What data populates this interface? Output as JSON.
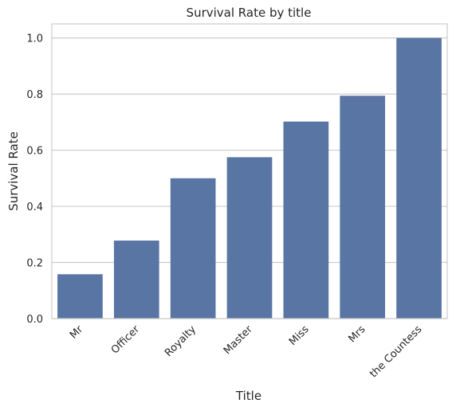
{
  "chart_data": {
    "type": "bar",
    "title": "Survival Rate by title",
    "xlabel": "Title",
    "ylabel": "Survival Rate",
    "categories": [
      "Mr",
      "Officer",
      "Royalty",
      "Master",
      "Miss",
      "Mrs",
      "the Countess"
    ],
    "values": [
      0.158,
      0.278,
      0.5,
      0.575,
      0.702,
      0.794,
      1.0
    ],
    "ylim": [
      0,
      1.05
    ],
    "yticks": [
      0.0,
      0.2,
      0.4,
      0.6,
      0.8,
      1.0
    ],
    "ytick_labels": [
      "0.0",
      "0.2",
      "0.4",
      "0.6",
      "0.8",
      "1.0"
    ],
    "x_tick_rotation_deg": 45,
    "grid": "horizontal",
    "bar_color": "#5975a4",
    "grid_color": "#cccccc"
  }
}
